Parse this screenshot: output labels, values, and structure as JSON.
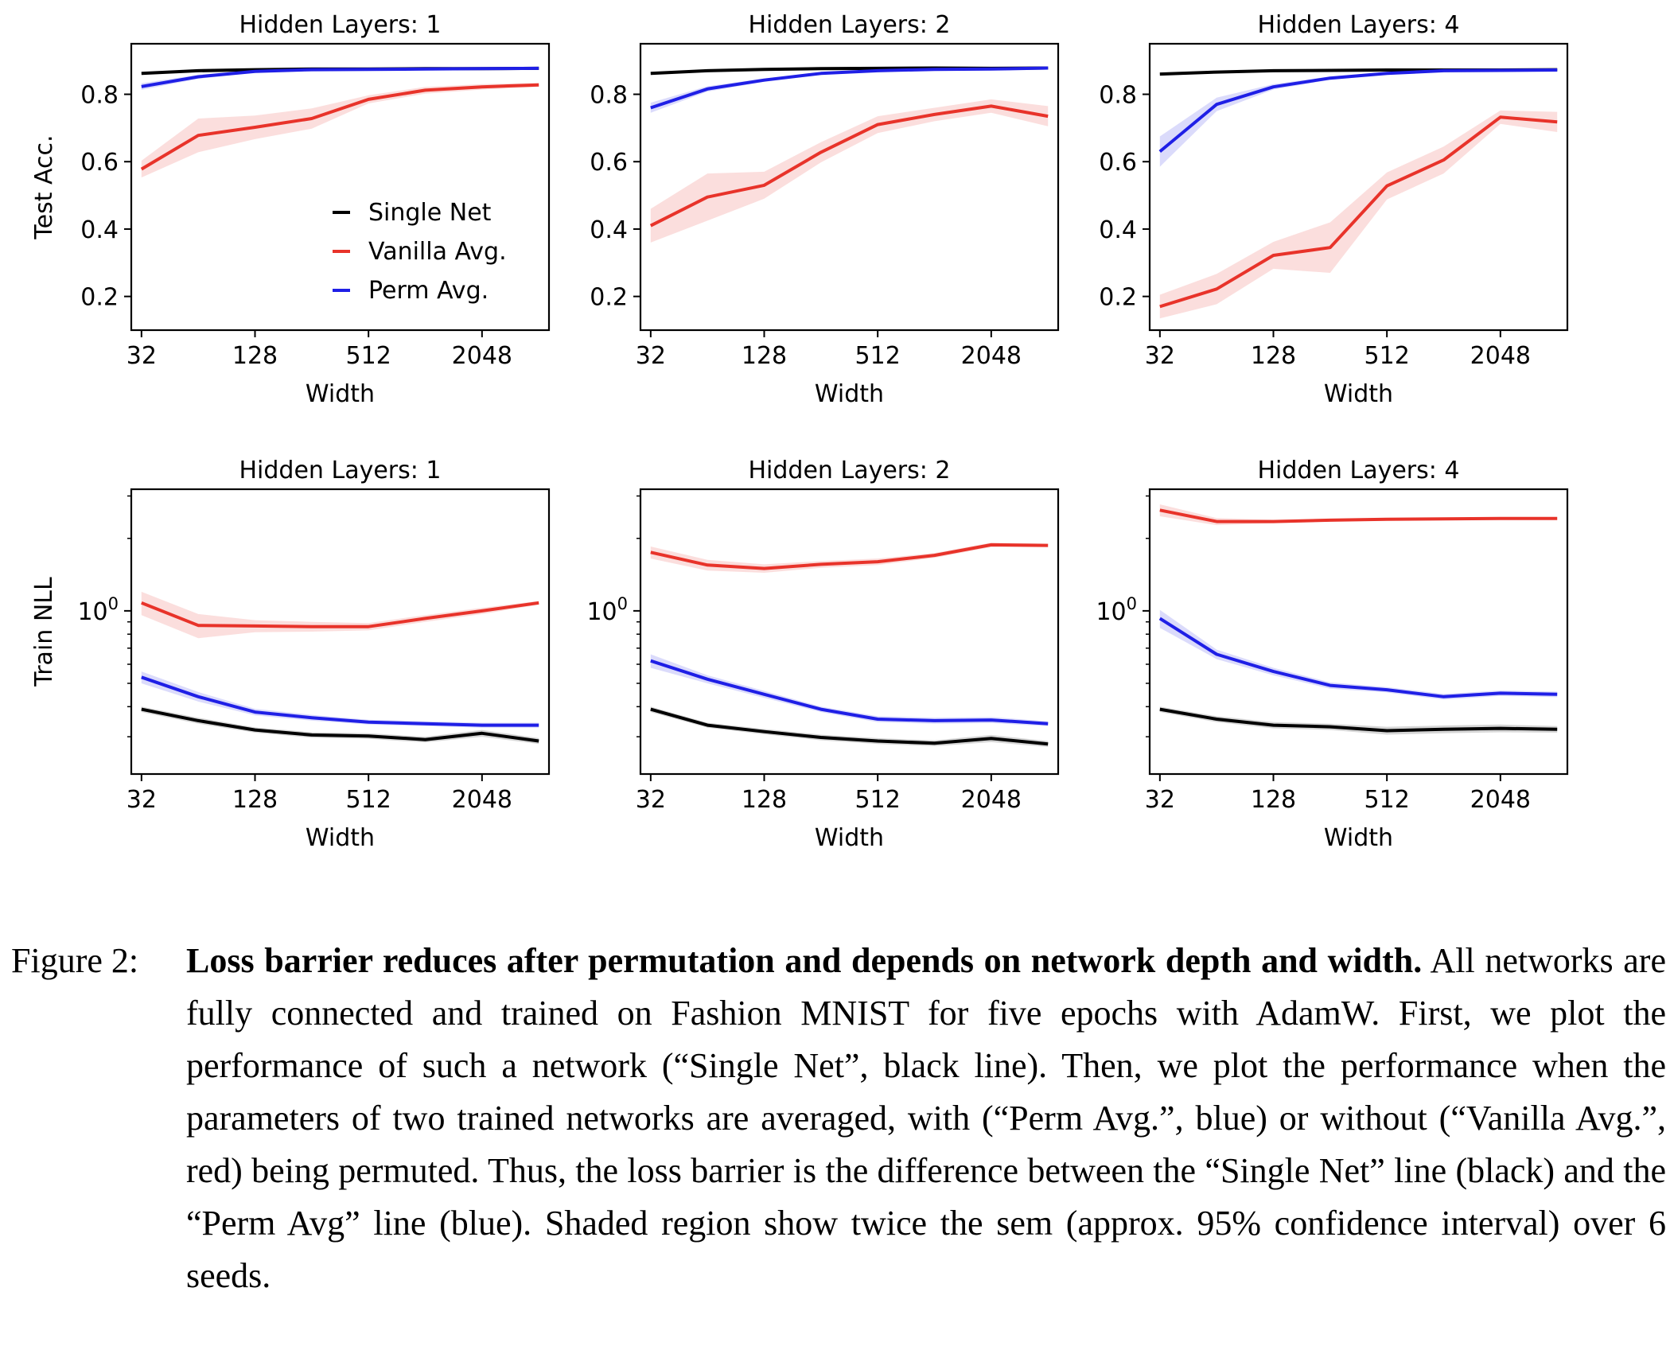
{
  "figure": {
    "x_label": "Width",
    "x_ticks": [
      "32",
      "128",
      "512",
      "2048"
    ],
    "legend": [
      {
        "label": "Single Net",
        "color": "#000000"
      },
      {
        "label": "Vanilla Avg.",
        "color": "#e8332a"
      },
      {
        "label": "Perm Avg.",
        "color": "#1f1fe6"
      }
    ]
  },
  "chart_data": [
    {
      "type": "line",
      "title": "Hidden Layers: 1",
      "xlabel": "Width",
      "ylabel": "Test Acc.",
      "x": [
        32,
        64,
        128,
        256,
        512,
        1024,
        2048,
        4096
      ],
      "yscale": "linear",
      "ylim": [
        0.1,
        0.95
      ],
      "yticks": [
        0.2,
        0.4,
        0.6,
        0.8
      ],
      "ytick_labels": [
        "0.2",
        "0.4",
        "0.6",
        "0.8"
      ],
      "legend_position": "center-right",
      "series": [
        {
          "name": "Single Net",
          "color": "#000000",
          "values": [
            0.862,
            0.87,
            0.873,
            0.875,
            0.875,
            0.876,
            0.876,
            0.877
          ],
          "spread": [
            0.003,
            0.003,
            0.003,
            0.003,
            0.003,
            0.003,
            0.003,
            0.003
          ]
        },
        {
          "name": "Vanilla Avg.",
          "color": "#e8332a",
          "values": [
            0.578,
            0.678,
            0.702,
            0.728,
            0.785,
            0.812,
            0.822,
            0.828
          ],
          "spread": [
            0.025,
            0.05,
            0.035,
            0.03,
            0.012,
            0.01,
            0.008,
            0.006
          ]
        },
        {
          "name": "Perm Avg.",
          "color": "#1f1fe6",
          "values": [
            0.823,
            0.852,
            0.868,
            0.873,
            0.874,
            0.875,
            0.876,
            0.877
          ],
          "spread": [
            0.01,
            0.006,
            0.004,
            0.003,
            0.003,
            0.003,
            0.003,
            0.003
          ]
        }
      ]
    },
    {
      "type": "line",
      "title": "Hidden Layers: 2",
      "xlabel": "Width",
      "ylabel": "",
      "x": [
        32,
        64,
        128,
        256,
        512,
        1024,
        2048,
        4096
      ],
      "yscale": "linear",
      "ylim": [
        0.1,
        0.95
      ],
      "yticks": [
        0.2,
        0.4,
        0.6,
        0.8
      ],
      "ytick_labels": [
        "0.2",
        "0.4",
        "0.6",
        "0.8"
      ],
      "series": [
        {
          "name": "Single Net",
          "color": "#000000",
          "values": [
            0.862,
            0.87,
            0.874,
            0.876,
            0.877,
            0.878,
            0.877,
            0.878
          ],
          "spread": [
            0.003,
            0.003,
            0.003,
            0.003,
            0.003,
            0.003,
            0.003,
            0.003
          ]
        },
        {
          "name": "Vanilla Avg.",
          "color": "#e8332a",
          "values": [
            0.41,
            0.495,
            0.53,
            0.628,
            0.71,
            0.74,
            0.765,
            0.735
          ],
          "spread": [
            0.05,
            0.07,
            0.04,
            0.03,
            0.025,
            0.02,
            0.02,
            0.03
          ]
        },
        {
          "name": "Perm Avg.",
          "color": "#1f1fe6",
          "values": [
            0.76,
            0.816,
            0.842,
            0.862,
            0.87,
            0.874,
            0.875,
            0.878
          ],
          "spread": [
            0.015,
            0.008,
            0.005,
            0.004,
            0.003,
            0.003,
            0.003,
            0.003
          ]
        }
      ]
    },
    {
      "type": "line",
      "title": "Hidden Layers: 4",
      "xlabel": "Width",
      "ylabel": "",
      "x": [
        32,
        64,
        128,
        256,
        512,
        1024,
        2048,
        4096
      ],
      "yscale": "linear",
      "ylim": [
        0.1,
        0.95
      ],
      "yticks": [
        0.2,
        0.4,
        0.6,
        0.8
      ],
      "ytick_labels": [
        "0.2",
        "0.4",
        "0.6",
        "0.8"
      ],
      "series": [
        {
          "name": "Single Net",
          "color": "#000000",
          "values": [
            0.86,
            0.866,
            0.87,
            0.871,
            0.872,
            0.872,
            0.872,
            0.873
          ],
          "spread": [
            0.003,
            0.003,
            0.003,
            0.003,
            0.003,
            0.003,
            0.003,
            0.003
          ]
        },
        {
          "name": "Vanilla Avg.",
          "color": "#e8332a",
          "values": [
            0.17,
            0.222,
            0.322,
            0.345,
            0.528,
            0.605,
            0.732,
            0.718
          ],
          "spread": [
            0.035,
            0.045,
            0.04,
            0.075,
            0.04,
            0.04,
            0.02,
            0.03
          ]
        },
        {
          "name": "Perm Avg.",
          "color": "#1f1fe6",
          "values": [
            0.63,
            0.77,
            0.822,
            0.848,
            0.862,
            0.87,
            0.871,
            0.872
          ],
          "spread": [
            0.045,
            0.02,
            0.008,
            0.005,
            0.004,
            0.003,
            0.003,
            0.003
          ]
        }
      ]
    },
    {
      "type": "line",
      "title": "Hidden Layers: 1",
      "xlabel": "Width",
      "ylabel": "Train NLL",
      "x": [
        32,
        64,
        128,
        256,
        512,
        1024,
        2048,
        4096
      ],
      "yscale": "log",
      "ylim": [
        0.21,
        3.2
      ],
      "yticks": [
        1.0
      ],
      "ytick_labels": [
        "10^0"
      ],
      "series": [
        {
          "name": "Single Net",
          "color": "#000000",
          "values": [
            0.39,
            0.35,
            0.32,
            0.305,
            0.302,
            0.292,
            0.31,
            0.288
          ],
          "spread": [
            0.01,
            0.01,
            0.008,
            0.008,
            0.008,
            0.008,
            0.01,
            0.008
          ]
        },
        {
          "name": "Vanilla Avg.",
          "color": "#e8332a",
          "values": [
            1.08,
            0.87,
            0.865,
            0.86,
            0.86,
            0.93,
            1.0,
            1.08
          ],
          "spread": [
            0.12,
            0.1,
            0.05,
            0.04,
            0.03,
            0.03,
            0.03,
            0.02
          ]
        },
        {
          "name": "Perm Avg.",
          "color": "#1f1fe6",
          "values": [
            0.53,
            0.44,
            0.38,
            0.36,
            0.345,
            0.34,
            0.335,
            0.335
          ],
          "spread": [
            0.03,
            0.02,
            0.012,
            0.01,
            0.008,
            0.008,
            0.008,
            0.008
          ]
        }
      ]
    },
    {
      "type": "line",
      "title": "Hidden Layers: 2",
      "xlabel": "Width",
      "ylabel": "",
      "x": [
        32,
        64,
        128,
        256,
        512,
        1024,
        2048,
        4096
      ],
      "yscale": "log",
      "ylim": [
        0.21,
        3.2
      ],
      "yticks": [
        1.0
      ],
      "ytick_labels": [
        "10^0"
      ],
      "series": [
        {
          "name": "Single Net",
          "color": "#000000",
          "values": [
            0.39,
            0.335,
            0.315,
            0.298,
            0.288,
            0.282,
            0.295,
            0.28
          ],
          "spread": [
            0.01,
            0.008,
            0.008,
            0.008,
            0.008,
            0.008,
            0.01,
            0.008
          ]
        },
        {
          "name": "Vanilla Avg.",
          "color": "#e8332a",
          "values": [
            1.75,
            1.55,
            1.5,
            1.56,
            1.6,
            1.7,
            1.88,
            1.87
          ],
          "spread": [
            0.1,
            0.08,
            0.06,
            0.05,
            0.05,
            0.04,
            0.04,
            0.03
          ]
        },
        {
          "name": "Perm Avg.",
          "color": "#1f1fe6",
          "values": [
            0.62,
            0.52,
            0.45,
            0.39,
            0.355,
            0.35,
            0.352,
            0.34
          ],
          "spread": [
            0.04,
            0.02,
            0.015,
            0.01,
            0.01,
            0.01,
            0.01,
            0.008
          ]
        }
      ]
    },
    {
      "type": "line",
      "title": "Hidden Layers: 4",
      "xlabel": "Width",
      "ylabel": "",
      "x": [
        32,
        64,
        128,
        256,
        512,
        1024,
        2048,
        4096
      ],
      "yscale": "log",
      "ylim": [
        0.21,
        3.2
      ],
      "yticks": [
        1.0
      ],
      "ytick_labels": [
        "10^0"
      ],
      "series": [
        {
          "name": "Single Net",
          "color": "#000000",
          "values": [
            0.39,
            0.355,
            0.335,
            0.33,
            0.318,
            0.322,
            0.325,
            0.322
          ],
          "spread": [
            0.01,
            0.01,
            0.01,
            0.01,
            0.012,
            0.012,
            0.012,
            0.01
          ]
        },
        {
          "name": "Vanilla Avg.",
          "color": "#e8332a",
          "values": [
            2.62,
            2.35,
            2.35,
            2.38,
            2.4,
            2.41,
            2.42,
            2.42
          ],
          "spread": [
            0.15,
            0.08,
            0.04,
            0.03,
            0.03,
            0.03,
            0.03,
            0.03
          ]
        },
        {
          "name": "Perm Avg.",
          "color": "#1f1fe6",
          "values": [
            0.93,
            0.66,
            0.56,
            0.49,
            0.47,
            0.44,
            0.455,
            0.45
          ],
          "spread": [
            0.08,
            0.03,
            0.02,
            0.015,
            0.012,
            0.012,
            0.012,
            0.012
          ]
        }
      ]
    }
  ],
  "caption": {
    "label": "Figure 2:",
    "title": "Loss barrier reduces after permutation and depends on network depth and width.",
    "body": "All networks are fully connected and trained on Fashion MNIST for five epochs with AdamW. First, we plot the performance of such a network (“Single Net”, black line). Then, we plot the performance when the parameters of two trained networks are averaged, with (“Perm Avg.”, blue) or without (“Vanilla Avg.”, red) being permuted. Thus, the loss barrier is the difference between the “Single Net” line (black) and the “Perm Avg” line (blue).  Shaded region show twice the sem (approx.  95% confidence interval) over 6 seeds."
  }
}
